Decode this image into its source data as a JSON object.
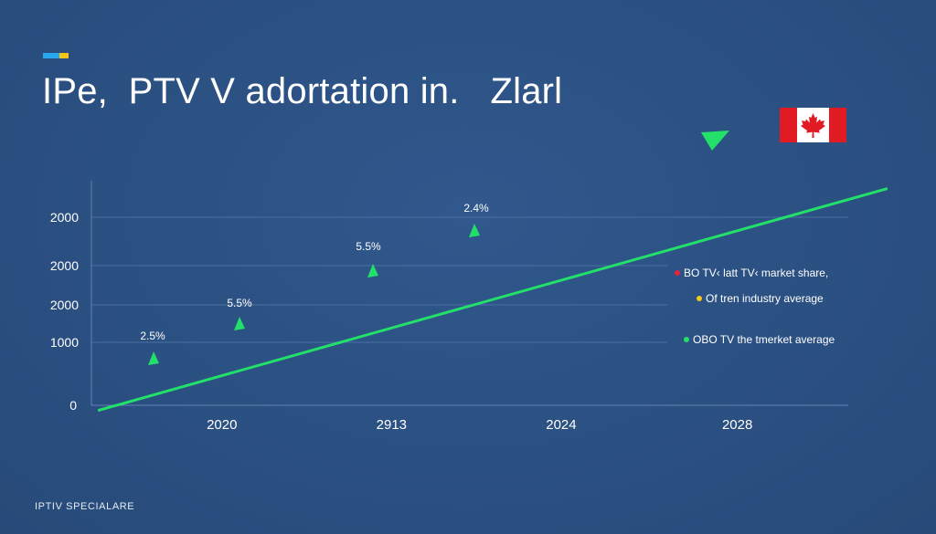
{
  "header": {
    "title": "IPe,  PTV V adortation in.   Zlarl"
  },
  "footer": {
    "brand": "IPTIV SPECIALARE"
  },
  "colors": {
    "background": "#2b5082",
    "line": "#22e06a",
    "grid": "#5f83b3",
    "legend_red": "#e0283a",
    "legend_yellow": "#f5c518",
    "legend_green": "#22e06a",
    "flag_red": "#e01b24"
  },
  "flag_icon": "canada-flag-icon",
  "chart_data": {
    "type": "line",
    "title": "IPe,  PTV V adortation in.   Zlarl",
    "categories": [
      "2020",
      "2913",
      "2024",
      "2028"
    ],
    "y_tick_labels": [
      "0",
      "1000",
      "2000",
      "2000",
      "2000"
    ],
    "grid": true,
    "legend_position": "right",
    "legend": [
      {
        "label": "BO TV‹ latt TV‹ market share,",
        "color": "#e0283a"
      },
      {
        "label": "Of tren industry average",
        "color": "#f5c518"
      },
      {
        "label": "OBO TV the tmerket average",
        "color": "#22e06a"
      }
    ],
    "series": [
      {
        "values": [
          0.4,
          1.3,
          2.7,
          4.2,
          6.1,
          8.0
        ],
        "x": [
          2019.2,
          2020.6,
          2022.3,
          2023.6,
          2026.5,
          2028.7
        ]
      }
    ],
    "annotations": [
      "2.5%",
      "5.5%",
      "5.5%",
      "2.4%"
    ]
  }
}
